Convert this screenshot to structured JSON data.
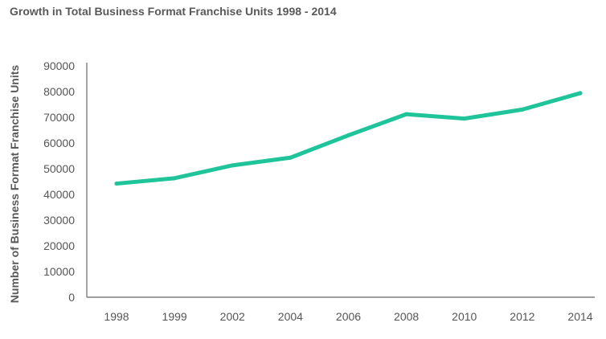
{
  "chart_data": {
    "type": "line",
    "title": "Growth in Total Business Format Franchise Units 1998 - 2014",
    "xlabel": "",
    "ylabel": "Number of Business Format Franchise Units",
    "categories": [
      "1998",
      "1999",
      "2002",
      "2004",
      "2006",
      "2008",
      "2010",
      "2012",
      "2014"
    ],
    "series": [
      {
        "values": [
          44200,
          46300,
          51300,
          54300,
          63000,
          71200,
          69500,
          73000,
          79400
        ]
      }
    ],
    "ylim": [
      0,
      90000
    ],
    "yticks": [
      0,
      10000,
      20000,
      30000,
      40000,
      50000,
      60000,
      70000,
      80000,
      90000
    ],
    "grid": false,
    "line_color": "#1fc49a",
    "axis_color": "#666666",
    "text_color": "#555555"
  }
}
